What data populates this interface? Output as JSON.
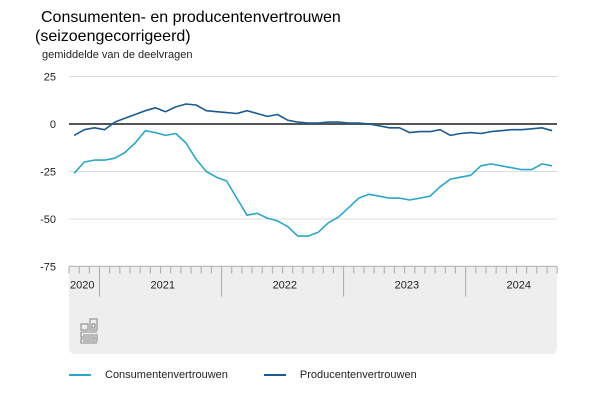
{
  "title_line1": "Consumenten- en producentenvertrouwen",
  "title_line2": "(seizoengecorrigeerd)",
  "chart_data": {
    "type": "line",
    "title": "Consumenten- en producentenvertrouwen (seizoengecorrigeerd)",
    "ylabel": "gemiddelde van de deelvragen",
    "xlabel": "",
    "ylim": [
      -75,
      25
    ],
    "yticks": [
      25,
      0,
      -25,
      -50,
      -75
    ],
    "ytick_labels": [
      "25",
      "0",
      "-25",
      "-50",
      "-75"
    ],
    "x_start": "2020-11",
    "x_end": "2024-10",
    "x_axis_start": "2020-10",
    "year_labels": [
      "2020",
      "2021",
      "2022",
      "2023",
      "2024"
    ],
    "grid": true,
    "legend_position": "bottom",
    "series": [
      {
        "name": "Consumentenvertrouwen",
        "color": "#2ba5c9",
        "values": [
          -26,
          -20,
          -19,
          -19,
          -18,
          -15,
          -10,
          -3.5,
          -4.5,
          -6,
          -5,
          -10,
          -18.5,
          -25,
          -28,
          -30,
          -39,
          -48,
          -47,
          -49.5,
          -51,
          -54,
          -59,
          -59,
          -57,
          -52,
          -49,
          -44,
          -39,
          -37,
          -38,
          -39,
          -39,
          -40,
          -39,
          -38,
          -33,
          -29,
          -28,
          -27,
          -22,
          -21,
          -22,
          -23,
          -24,
          -24,
          -21,
          -22
        ]
      },
      {
        "name": "Producentenvertrouwen",
        "color": "#1b5b91",
        "values": [
          -6,
          -3,
          -2,
          -3,
          1,
          3,
          5,
          7,
          8.5,
          6.5,
          9,
          10.5,
          10,
          7,
          6.5,
          6,
          5.5,
          7,
          5.5,
          4,
          5,
          2,
          1,
          0.5,
          0.5,
          1,
          1,
          0.5,
          0.5,
          0,
          -1,
          -2,
          -2,
          -4.5,
          -4,
          -4,
          -3,
          -6,
          -5,
          -4.5,
          -5,
          -4,
          -3.5,
          -3,
          -3,
          -2.5,
          -2,
          -3.5
        ]
      }
    ]
  },
  "legend": {
    "items": [
      {
        "label": "Consumentenvertrouwen",
        "color": "#2ba5c9"
      },
      {
        "label": "Producentenvertrouwen",
        "color": "#1b5b91"
      }
    ]
  },
  "logo_text": "cbs",
  "icons": {
    "logo": "cbs-logo-icon"
  }
}
